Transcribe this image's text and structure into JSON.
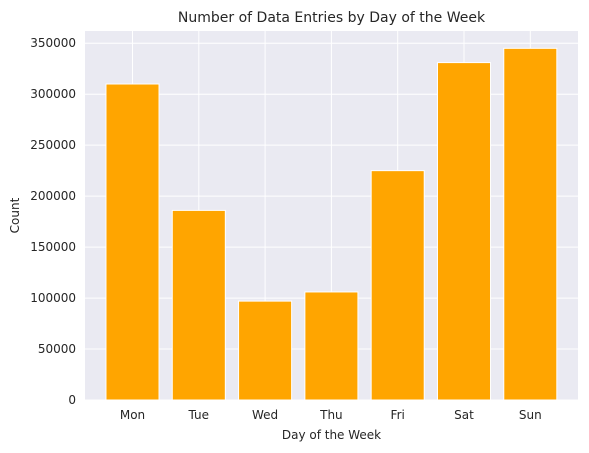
{
  "chart_data": {
    "type": "bar",
    "title": "Number of Data Entries by Day of the Week",
    "xlabel": "Day of the Week",
    "ylabel": "Count",
    "categories": [
      "Mon",
      "Tue",
      "Wed",
      "Thu",
      "Fri",
      "Sat",
      "Sun"
    ],
    "values": [
      310000,
      186000,
      97000,
      106000,
      225000,
      331000,
      345000
    ],
    "ylim": [
      0,
      362000
    ],
    "yticks": [
      0,
      50000,
      100000,
      150000,
      200000,
      250000,
      300000,
      350000
    ],
    "grid": true,
    "bar_color": "#FFA500",
    "plot_background": "#EAEAF2",
    "grid_color": "#FFFFFF"
  }
}
